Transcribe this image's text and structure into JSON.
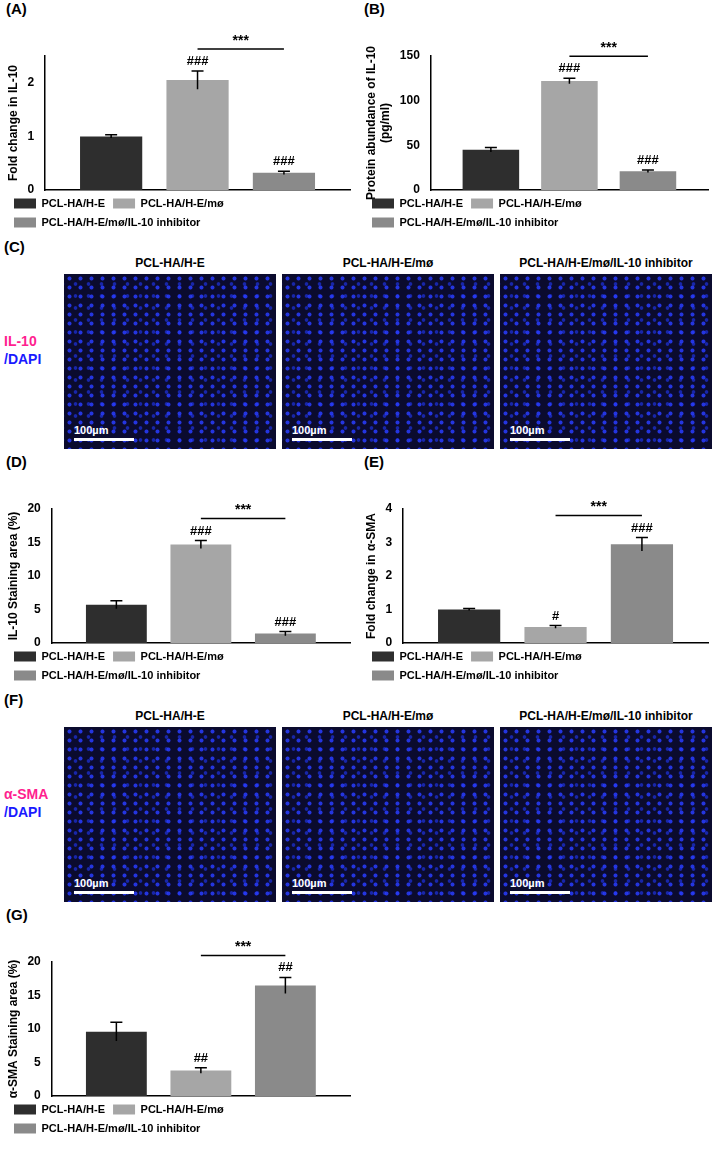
{
  "chart_data": [
    {
      "panel": "(A)",
      "type": "bar",
      "y_label": "Fold change in IL-10",
      "categories": [
        null
      ],
      "series": [
        {
          "name": "PCL-HA/H-E",
          "color": "#2e2e2e",
          "values": [
            1.0
          ],
          "errors": [
            0.03
          ]
        },
        {
          "name": "PCL-HA/H-E/mø",
          "color": "#a6a6a6",
          "values": [
            2.05
          ],
          "errors": [
            0.17
          ],
          "annotation": "###"
        },
        {
          "name": "PCL-HA/H-E/mø/IL-10 inhibitor",
          "color": "#8a8a8a",
          "values": [
            0.32
          ],
          "errors": [
            0.03
          ],
          "annotation": "###"
        }
      ],
      "comparisons": [
        {
          "series": [
            1,
            2
          ],
          "label": "***"
        }
      ],
      "ylim": [
        0,
        2.5
      ],
      "yticks": [
        0,
        1,
        2
      ],
      "grid": false,
      "legend": "bottom",
      "tick_labels": "y"
    },
    {
      "panel": "(B)",
      "type": "bar",
      "y_label": [
        "Protein abundance of IL-10",
        "(pg/ml)"
      ],
      "categories": [
        null
      ],
      "series": [
        {
          "name": "PCL-HA/H-E",
          "color": "#2e2e2e",
          "values": [
            45
          ],
          "errors": [
            2.5
          ]
        },
        {
          "name": "PCL-HA/H-E/mø",
          "color": "#a6a6a6",
          "values": [
            122
          ],
          "errors": [
            3
          ],
          "annotation": "###"
        },
        {
          "name": "PCL-HA/H-E/mø/IL-10 inhibitor",
          "color": "#8a8a8a",
          "values": [
            21
          ],
          "errors": [
            1.5
          ],
          "annotation": "###"
        }
      ],
      "comparisons": [
        {
          "series": [
            1,
            2
          ],
          "label": "***"
        }
      ],
      "ylim": [
        0,
        150
      ],
      "yticks": [
        0,
        50,
        100,
        150
      ],
      "grid": false,
      "legend": "bottom",
      "tick_labels": "y"
    },
    {
      "panel": "(D)",
      "type": "bar",
      "y_label": "IL-10 Staining area (%)",
      "categories": [
        null
      ],
      "series": [
        {
          "name": "PCL-HA/H-E",
          "color": "#2e2e2e",
          "values": [
            5.7
          ],
          "errors": [
            0.6
          ]
        },
        {
          "name": "PCL-HA/H-E/mø",
          "color": "#a6a6a6",
          "values": [
            14.7
          ],
          "errors": [
            0.6
          ],
          "annotation": "###"
        },
        {
          "name": "PCL-HA/H-E/mø/IL-10 inhibitor",
          "color": "#8a8a8a",
          "values": [
            1.4
          ],
          "errors": [
            0.3
          ],
          "annotation": "###"
        }
      ],
      "comparisons": [
        {
          "series": [
            1,
            2
          ],
          "label": "***"
        }
      ],
      "ylim": [
        0,
        20
      ],
      "yticks": [
        0,
        5,
        10,
        15,
        20
      ],
      "grid": false,
      "legend": "bottom",
      "tick_labels": "y"
    },
    {
      "panel": "(E)",
      "type": "bar",
      "y_label": "Fold change in α-SMA",
      "categories": [
        null
      ],
      "series": [
        {
          "name": "PCL-HA/H-E",
          "color": "#2e2e2e",
          "values": [
            1.0
          ],
          "errors": [
            0.03
          ]
        },
        {
          "name": "PCL-HA/H-E/mø",
          "color": "#a6a6a6",
          "values": [
            0.48
          ],
          "errors": [
            0.04
          ],
          "annotation": "#"
        },
        {
          "name": "PCL-HA/H-E/mø/IL-10 inhibitor",
          "color": "#8a8a8a",
          "values": [
            2.95
          ],
          "errors": [
            0.2
          ],
          "annotation": "###"
        }
      ],
      "comparisons": [
        {
          "series": [
            1,
            2
          ],
          "label": "***"
        }
      ],
      "ylim": [
        0,
        4
      ],
      "yticks": [
        0,
        1,
        2,
        3,
        4
      ],
      "grid": false,
      "legend": "bottom",
      "tick_labels": "y"
    },
    {
      "panel": "(G)",
      "type": "bar",
      "y_label": "α-SMA Staining area (%)",
      "categories": [
        null
      ],
      "series": [
        {
          "name": "PCL-HA/H-E",
          "color": "#2e2e2e",
          "values": [
            9.6
          ],
          "errors": [
            1.4
          ]
        },
        {
          "name": "PCL-HA/H-E/mø",
          "color": "#a6a6a6",
          "values": [
            3.8
          ],
          "errors": [
            0.4
          ],
          "annotation": "##"
        },
        {
          "name": "PCL-HA/H-E/mø/IL-10 inhibitor",
          "color": "#8a8a8a",
          "values": [
            16.5
          ],
          "errors": [
            1.2
          ],
          "annotation": "##"
        }
      ],
      "comparisons": [
        {
          "series": [
            1,
            2
          ],
          "label": "***"
        }
      ],
      "ylim": [
        0,
        20
      ],
      "yticks": [
        0,
        5,
        10,
        15,
        20
      ],
      "grid": false,
      "legend": "bottom",
      "tick_labels": "y"
    }
  ],
  "image_panels": [
    {
      "panel": "(C)",
      "stain": [
        {
          "text": "IL-10",
          "color": "#ff1f8f"
        },
        {
          "text": "/DAPI",
          "color": "#1a1aff"
        }
      ],
      "images": [
        {
          "title": "PCL-HA/H-E",
          "scale_bar": "100µm"
        },
        {
          "title": "PCL-HA/H-E/mø",
          "scale_bar": "100µm"
        },
        {
          "title": "PCL-HA/H-E/mø/IL-10 inhibitor",
          "scale_bar": "100µm"
        }
      ]
    },
    {
      "panel": "(F)",
      "stain": [
        {
          "text": "α-SMA",
          "color": "#ff1f8f"
        },
        {
          "text": "/DAPI",
          "color": "#1a1aff"
        }
      ],
      "images": [
        {
          "title": "PCL-HA/H-E",
          "scale_bar": "100µm"
        },
        {
          "title": "PCL-HA/H-E/mø",
          "scale_bar": "100µm"
        },
        {
          "title": "PCL-HA/H-E/mø/IL-10 inhibitor",
          "scale_bar": "100µm"
        }
      ]
    }
  ]
}
